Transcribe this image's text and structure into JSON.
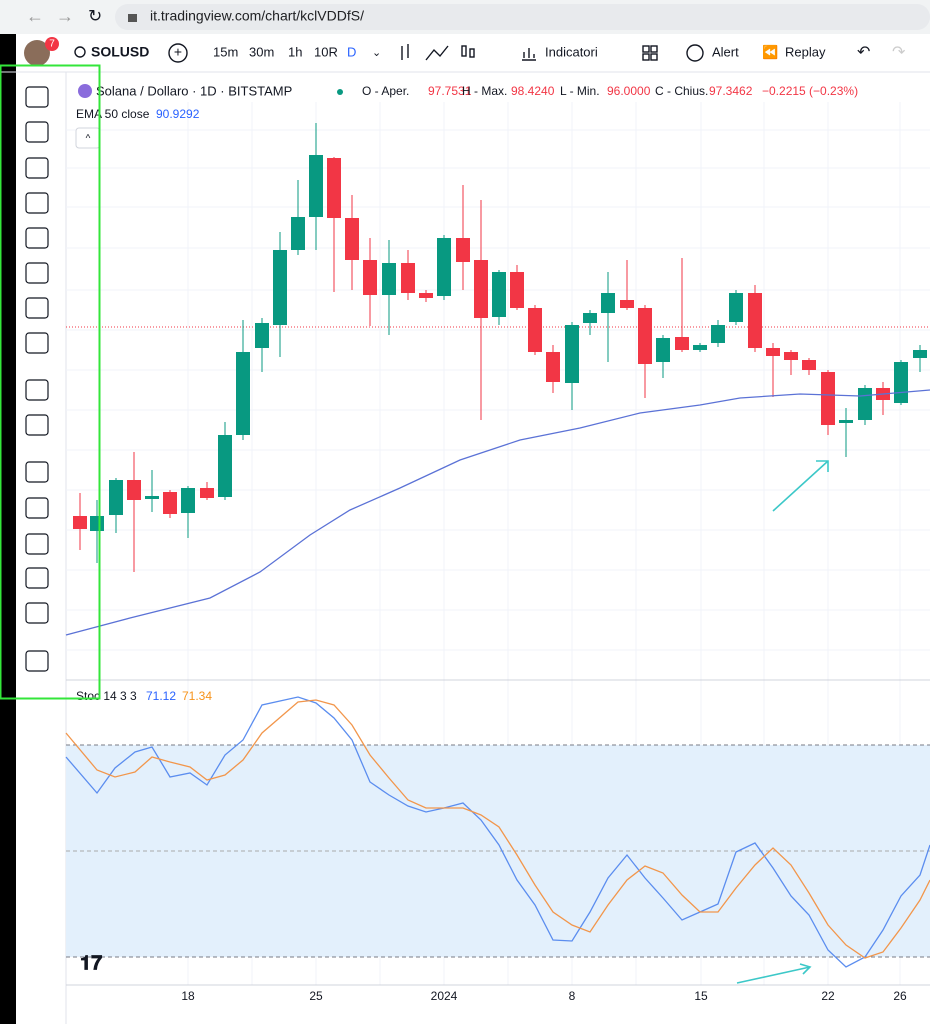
{
  "browser": {
    "url": "it.tradingview.com/chart/kclVDDfS/"
  },
  "toolbar": {
    "notifications": "7",
    "symbol": "SOLUSD",
    "intervals": [
      "15m",
      "30m",
      "1h",
      "10R",
      "D"
    ],
    "indicators": "Indicatori",
    "alert": "Alert",
    "replay": "Replay"
  },
  "legend": {
    "symbol": "Solana / Dollaro · 1D · BITSTAMP",
    "open_label": "O - Aper.",
    "open": "97.7531",
    "high_label": "H - Max.",
    "high": "98.4240",
    "low_label": "L - Min.",
    "low": "96.0000",
    "close_label": "C - Chius.",
    "close": "97.3462",
    "change": "−0.2215 (−0.23%)",
    "ema_label": "EMA 50 close",
    "ema": "90.9292"
  },
  "stoch": {
    "label": "Stoc 14 3 3",
    "k": "71.12",
    "d": "71.34"
  },
  "time_axis": [
    "18",
    "25",
    "2024",
    "8",
    "15",
    "22",
    "26"
  ]
}
